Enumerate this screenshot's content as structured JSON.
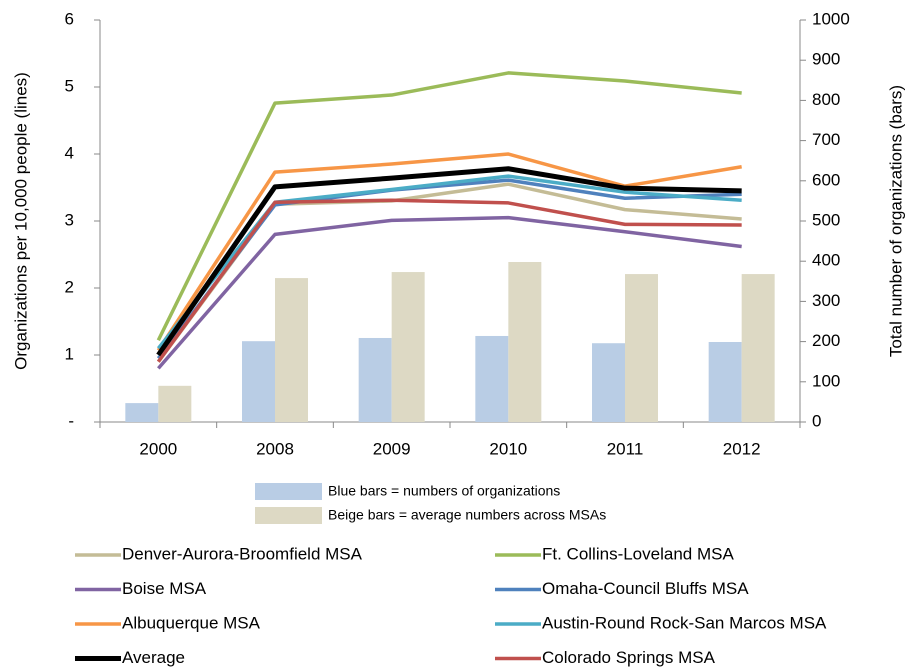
{
  "chart_data": {
    "type": "bar-line",
    "categories": [
      "2000",
      "2008",
      "2009",
      "2010",
      "2011",
      "2012"
    ],
    "ylabel": "Organizations per 10,000 people (lines)",
    "y2label": "Total number of organizations (bars)",
    "ylim": [
      0,
      6
    ],
    "yticks": [
      {
        "value": 0,
        "label": "-"
      },
      1,
      2,
      3,
      4,
      5,
      6
    ],
    "y2lim": [
      0,
      1000
    ],
    "y2ticks": [
      0,
      100,
      200,
      300,
      400,
      500,
      600,
      700,
      800,
      900,
      1000
    ],
    "bar_series": [
      {
        "name": "Blue bars  =  numbers of organizations",
        "color": "#b9cde5",
        "axis": "y2",
        "values": [
          47,
          201,
          209,
          214,
          196,
          199
        ]
      },
      {
        "name": "Beige bars  =  average numbers across MSAs",
        "color": "#ddd9c4",
        "axis": "y2",
        "values": [
          90,
          358,
          373,
          398,
          368,
          368
        ]
      }
    ],
    "series": [
      {
        "name": "Denver-Aurora-Broomfield MSA",
        "color": "#c4bc96",
        "values": [
          0.9,
          3.25,
          3.3,
          3.55,
          3.17,
          3.03
        ]
      },
      {
        "name": "Ft. Collins-Loveland MSA",
        "color": "#9bbb59",
        "values": [
          1.22,
          4.76,
          4.88,
          5.21,
          5.09,
          4.91
        ]
      },
      {
        "name": "Boise MSA",
        "color": "#8064a2",
        "values": [
          0.8,
          2.8,
          3.01,
          3.05,
          2.84,
          2.62
        ]
      },
      {
        "name": "Omaha-Council Bluffs MSA",
        "color": "#4f81bd",
        "values": [
          0.95,
          3.24,
          3.46,
          3.61,
          3.34,
          3.4
        ]
      },
      {
        "name": "Albuquerque MSA",
        "color": "#f79646",
        "values": [
          1.07,
          3.73,
          3.85,
          4.0,
          3.52,
          3.81
        ]
      },
      {
        "name": "Austin-Round Rock-San Marcos MSA",
        "color": "#4bacc6",
        "values": [
          1.1,
          3.28,
          3.47,
          3.67,
          3.43,
          3.31
        ]
      },
      {
        "name": "Average",
        "color": "#000000",
        "values": [
          1.0,
          3.51,
          3.64,
          3.78,
          3.49,
          3.45
        ]
      },
      {
        "name": "Colorado Springs MSA",
        "color": "#c0504d",
        "values": [
          0.9,
          3.28,
          3.31,
          3.27,
          2.95,
          2.94
        ]
      }
    ]
  }
}
